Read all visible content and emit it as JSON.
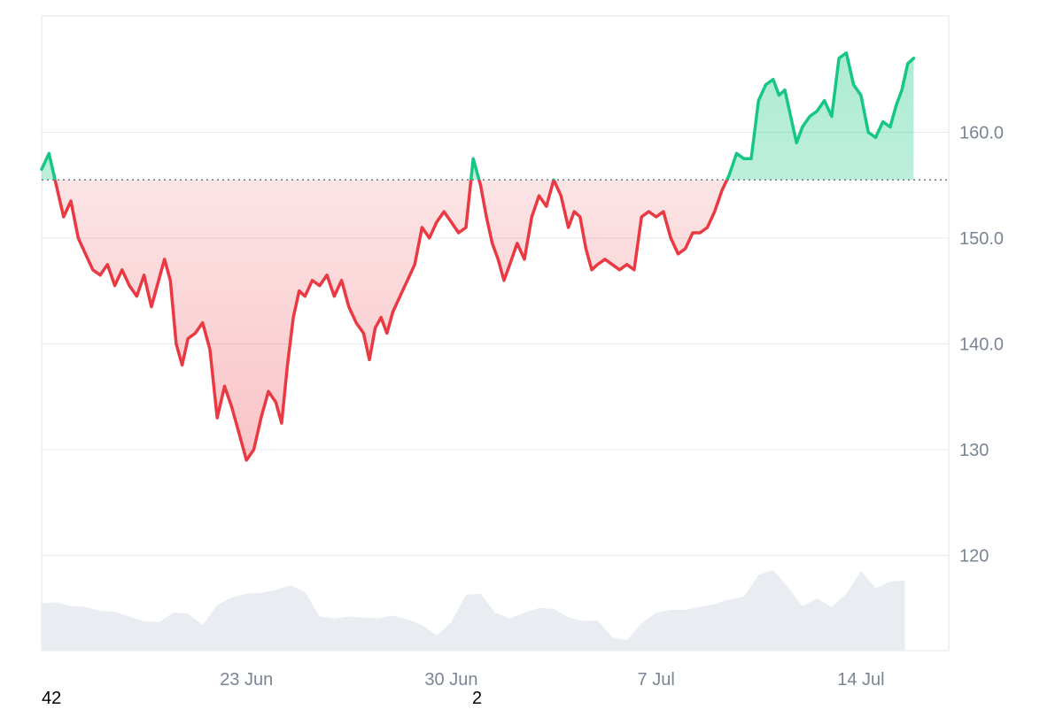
{
  "chart_data": {
    "type": "line",
    "baseline": 155.5,
    "ylim": [
      111,
      171
    ],
    "xlim": [
      "2025-06-16",
      "2025-07-17"
    ],
    "y_ticks": [
      {
        "value": 160,
        "label": "160.0"
      },
      {
        "value": 150,
        "label": "150.0"
      },
      {
        "value": 140,
        "label": "140.0"
      },
      {
        "value": 130,
        "label": "130"
      },
      {
        "value": 120,
        "label": "120"
      }
    ],
    "x_ticks": [
      {
        "date": "2025-06-23",
        "label": "23 Jun"
      },
      {
        "date": "2025-06-30",
        "label": "30 Jun"
      },
      {
        "date": "2025-07-07",
        "label": "7 Jul"
      },
      {
        "date": "2025-07-14",
        "label": "14 Jul"
      }
    ],
    "grid": true,
    "series": [
      {
        "points": [
          [
            "2025-06-16",
            156.5
          ],
          [
            "2025-06-16",
            158.0
          ],
          [
            "2025-06-16",
            155.0
          ],
          [
            "2025-06-16",
            152.0
          ],
          [
            "2025-06-17",
            153.5
          ],
          [
            "2025-06-17",
            150.0
          ],
          [
            "2025-06-17",
            148.5
          ],
          [
            "2025-06-17",
            147.0
          ],
          [
            "2025-06-18",
            146.5
          ],
          [
            "2025-06-18",
            147.5
          ],
          [
            "2025-06-18",
            145.5
          ],
          [
            "2025-06-18",
            147.0
          ],
          [
            "2025-06-19",
            145.5
          ],
          [
            "2025-06-19",
            144.5
          ],
          [
            "2025-06-19",
            146.5
          ],
          [
            "2025-06-19",
            143.5
          ],
          [
            "2025-06-20",
            146.0
          ],
          [
            "2025-06-20",
            148.0
          ],
          [
            "2025-06-20",
            146.0
          ],
          [
            "2025-06-20",
            140.0
          ],
          [
            "2025-06-20",
            138.0
          ],
          [
            "2025-06-21",
            140.5
          ],
          [
            "2025-06-21",
            141.0
          ],
          [
            "2025-06-21",
            142.0
          ],
          [
            "2025-06-21",
            139.5
          ],
          [
            "2025-06-22",
            133.0
          ],
          [
            "2025-06-22",
            136.0
          ],
          [
            "2025-06-22",
            134.0
          ],
          [
            "2025-06-22",
            131.5
          ],
          [
            "2025-06-23",
            129.0
          ],
          [
            "2025-06-23",
            130.0
          ],
          [
            "2025-06-23",
            133.0
          ],
          [
            "2025-06-23",
            135.5
          ],
          [
            "2025-06-24",
            134.5
          ],
          [
            "2025-06-24",
            132.5
          ],
          [
            "2025-06-24",
            138.0
          ],
          [
            "2025-06-24",
            142.5
          ],
          [
            "2025-06-24",
            145.0
          ],
          [
            "2025-06-25",
            144.5
          ],
          [
            "2025-06-25",
            146.0
          ],
          [
            "2025-06-25",
            145.5
          ],
          [
            "2025-06-25",
            146.5
          ],
          [
            "2025-06-26",
            144.5
          ],
          [
            "2025-06-26",
            146.0
          ],
          [
            "2025-06-26",
            143.5
          ],
          [
            "2025-06-26",
            142.0
          ],
          [
            "2025-06-27",
            141.0
          ],
          [
            "2025-06-27",
            138.5
          ],
          [
            "2025-06-27",
            141.5
          ],
          [
            "2025-06-27",
            142.5
          ],
          [
            "2025-06-27",
            141.0
          ],
          [
            "2025-06-28",
            143.0
          ],
          [
            "2025-06-28",
            144.5
          ],
          [
            "2025-06-28",
            146.0
          ],
          [
            "2025-06-28",
            147.5
          ],
          [
            "2025-06-29",
            151.0
          ],
          [
            "2025-06-29",
            150.0
          ],
          [
            "2025-06-29",
            151.5
          ],
          [
            "2025-06-29",
            152.5
          ],
          [
            "2025-06-30",
            151.5
          ],
          [
            "2025-06-30",
            150.5
          ],
          [
            "2025-06-30",
            151.0
          ],
          [
            "2025-06-30",
            157.5
          ],
          [
            "2025-07-01",
            155.0
          ],
          [
            "2025-07-01",
            152.0
          ],
          [
            "2025-07-01",
            149.5
          ],
          [
            "2025-07-01",
            148.0
          ],
          [
            "2025-07-01",
            146.0
          ],
          [
            "2025-07-02",
            147.5
          ],
          [
            "2025-07-02",
            149.5
          ],
          [
            "2025-07-02",
            148.0
          ],
          [
            "2025-07-02",
            152.0
          ],
          [
            "2025-07-03",
            154.0
          ],
          [
            "2025-07-03",
            153.0
          ],
          [
            "2025-07-03",
            155.5
          ],
          [
            "2025-07-03",
            154.0
          ],
          [
            "2025-07-04",
            151.0
          ],
          [
            "2025-07-04",
            152.5
          ],
          [
            "2025-07-04",
            152.0
          ],
          [
            "2025-07-04",
            149.0
          ],
          [
            "2025-07-04",
            147.0
          ],
          [
            "2025-07-05",
            147.5
          ],
          [
            "2025-07-05",
            148.0
          ],
          [
            "2025-07-05",
            147.5
          ],
          [
            "2025-07-05",
            147.0
          ],
          [
            "2025-07-06",
            147.5
          ],
          [
            "2025-07-06",
            147.0
          ],
          [
            "2025-07-06",
            152.0
          ],
          [
            "2025-07-06",
            152.5
          ],
          [
            "2025-07-07",
            152.0
          ],
          [
            "2025-07-07",
            152.5
          ],
          [
            "2025-07-07",
            150.0
          ],
          [
            "2025-07-07",
            148.5
          ],
          [
            "2025-07-08",
            149.0
          ],
          [
            "2025-07-08",
            150.5
          ],
          [
            "2025-07-08",
            150.5
          ],
          [
            "2025-07-08",
            151.0
          ],
          [
            "2025-07-09",
            152.5
          ],
          [
            "2025-07-09",
            154.5
          ],
          [
            "2025-07-09",
            156.0
          ],
          [
            "2025-07-09",
            158.0
          ],
          [
            "2025-07-10",
            157.5
          ],
          [
            "2025-07-10",
            157.5
          ],
          [
            "2025-07-10",
            163.0
          ],
          [
            "2025-07-10",
            164.5
          ],
          [
            "2025-07-11",
            165.0
          ],
          [
            "2025-07-11",
            163.5
          ],
          [
            "2025-07-11",
            164.0
          ],
          [
            "2025-07-11",
            161.5
          ],
          [
            "2025-07-11",
            159.0
          ],
          [
            "2025-07-12",
            160.5
          ],
          [
            "2025-07-12",
            161.5
          ],
          [
            "2025-07-12",
            162.0
          ],
          [
            "2025-07-12",
            163.0
          ],
          [
            "2025-07-13",
            161.5
          ],
          [
            "2025-07-13",
            167.0
          ],
          [
            "2025-07-13",
            167.5
          ],
          [
            "2025-07-13",
            164.5
          ],
          [
            "2025-07-14",
            163.5
          ],
          [
            "2025-07-14",
            160.0
          ],
          [
            "2025-07-14",
            159.5
          ],
          [
            "2025-07-14",
            161.0
          ],
          [
            "2025-07-15",
            160.5
          ],
          [
            "2025-07-15",
            162.5
          ],
          [
            "2025-07-15",
            164.0
          ],
          [
            "2025-07-15",
            166.5
          ],
          [
            "2025-07-15",
            167.0
          ]
        ]
      },
      {
        "type": "area",
        "axis": "none",
        "points": [
          [
            "2025-06-16",
            0.5
          ],
          [
            "2025-06-16",
            0.51
          ],
          [
            "2025-06-17",
            0.47
          ],
          [
            "2025-06-17",
            0.46
          ],
          [
            "2025-06-18",
            0.42
          ],
          [
            "2025-06-18",
            0.41
          ],
          [
            "2025-06-19",
            0.36
          ],
          [
            "2025-06-19",
            0.31
          ],
          [
            "2025-06-20",
            0.3
          ],
          [
            "2025-06-20",
            0.4
          ],
          [
            "2025-06-21",
            0.39
          ],
          [
            "2025-06-21",
            0.27
          ],
          [
            "2025-06-22",
            0.48
          ],
          [
            "2025-06-22",
            0.56
          ],
          [
            "2025-06-23",
            0.6
          ],
          [
            "2025-06-23",
            0.61
          ],
          [
            "2025-06-24",
            0.64
          ],
          [
            "2025-06-24",
            0.69
          ],
          [
            "2025-06-25",
            0.62
          ],
          [
            "2025-06-25",
            0.36
          ],
          [
            "2025-06-26",
            0.34
          ],
          [
            "2025-06-26",
            0.36
          ],
          [
            "2025-06-27",
            0.35
          ],
          [
            "2025-06-27",
            0.34
          ],
          [
            "2025-06-28",
            0.37
          ],
          [
            "2025-06-28",
            0.33
          ],
          [
            "2025-06-29",
            0.27
          ],
          [
            "2025-06-29",
            0.16
          ],
          [
            "2025-06-30",
            0.3
          ],
          [
            "2025-06-30",
            0.59
          ],
          [
            "2025-07-01",
            0.6
          ],
          [
            "2025-07-01",
            0.4
          ],
          [
            "2025-07-02",
            0.34
          ],
          [
            "2025-07-02",
            0.4
          ],
          [
            "2025-07-03",
            0.45
          ],
          [
            "2025-07-03",
            0.44
          ],
          [
            "2025-07-04",
            0.35
          ],
          [
            "2025-07-04",
            0.31
          ],
          [
            "2025-07-05",
            0.32
          ],
          [
            "2025-07-05",
            0.14
          ],
          [
            "2025-07-06",
            0.11
          ],
          [
            "2025-07-06",
            0.29
          ],
          [
            "2025-07-07",
            0.4
          ],
          [
            "2025-07-07",
            0.43
          ],
          [
            "2025-07-08",
            0.43
          ],
          [
            "2025-07-08",
            0.46
          ],
          [
            "2025-07-09",
            0.49
          ],
          [
            "2025-07-09",
            0.54
          ],
          [
            "2025-07-10",
            0.57
          ],
          [
            "2025-07-10",
            0.8
          ],
          [
            "2025-07-11",
            0.85
          ],
          [
            "2025-07-11",
            0.67
          ],
          [
            "2025-07-12",
            0.47
          ],
          [
            "2025-07-12",
            0.55
          ],
          [
            "2025-07-13",
            0.46
          ],
          [
            "2025-07-13",
            0.6
          ],
          [
            "2025-07-14",
            0.84
          ],
          [
            "2025-07-14",
            0.66
          ],
          [
            "2025-07-15",
            0.73
          ],
          [
            "2025-07-15",
            0.74
          ]
        ]
      }
    ]
  },
  "corner_labels": {
    "left": "42",
    "middle": "2"
  },
  "colors": {
    "up_line": "#16c784",
    "up_fill": "#16c784",
    "down_line": "#ea3943",
    "down_fill": "#ea3943",
    "volume_fill": "#e9edf2",
    "grid": "#e6e8eb",
    "baseline": "#6f7680",
    "tick_text": "#7a8494"
  }
}
